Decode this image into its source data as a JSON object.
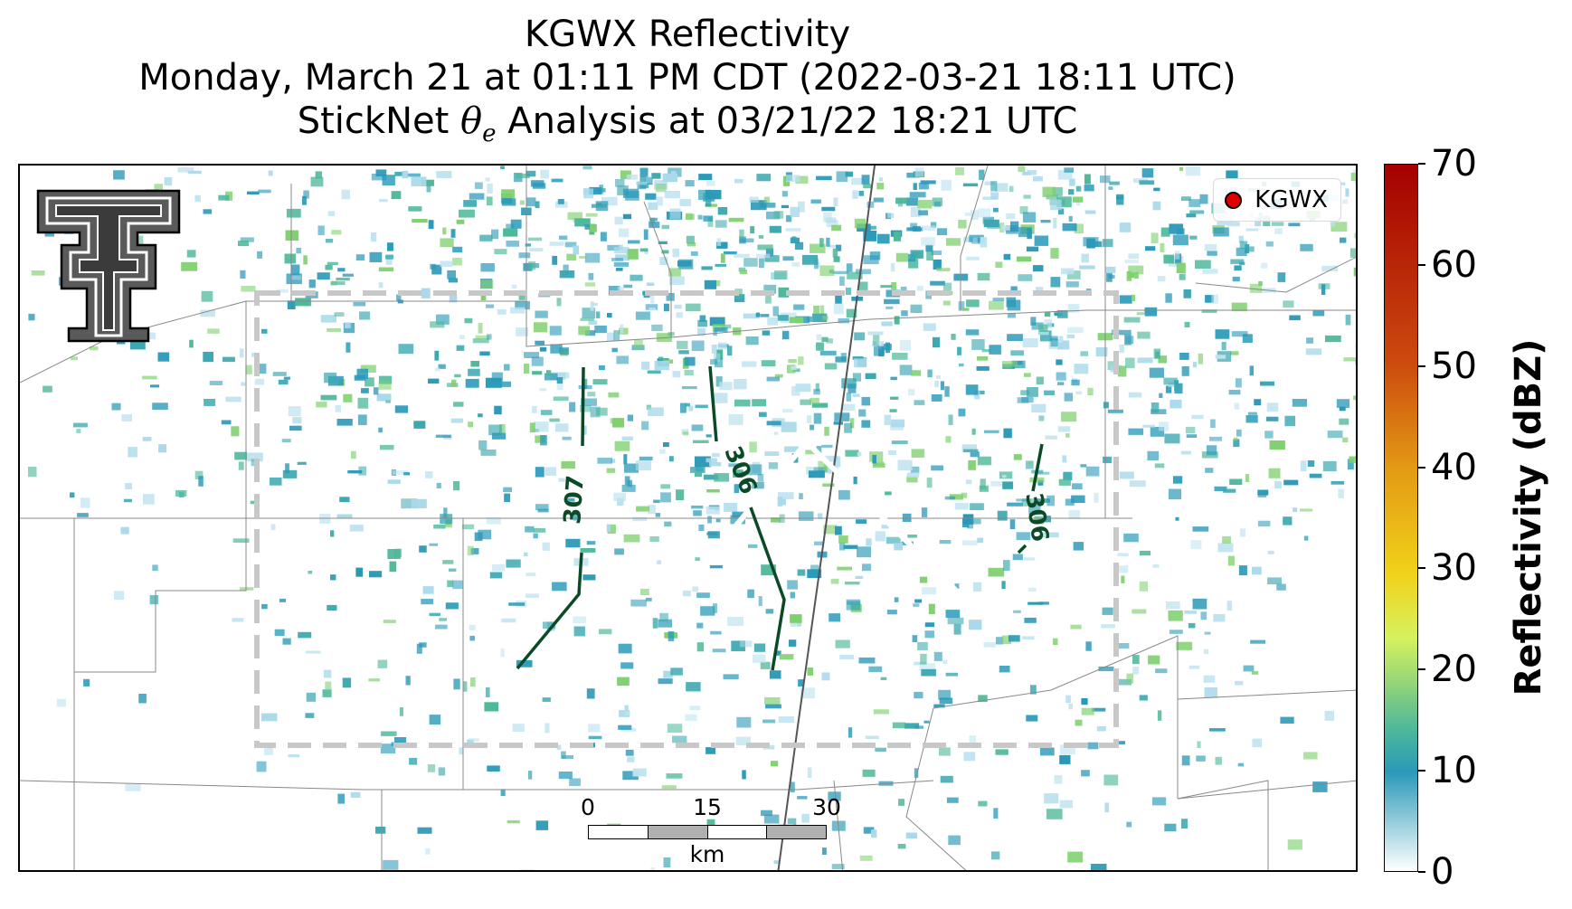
{
  "title": {
    "line1": "KGWX Reflectivity",
    "line2": "Monday, March 21 at 01:11 PM CDT (2022-03-21 18:11 UTC)",
    "line3_prefix": "StickNet ",
    "line3_symbol": "θ",
    "line3_subscript": "e",
    "line3_suffix": " Analysis at 03/21/22 18:21 UTC"
  },
  "legend": {
    "label": "KGWX",
    "marker_color": "#e00000"
  },
  "contours": [
    {
      "label": "307",
      "color": "#0a4a26"
    },
    {
      "label": "306",
      "color": "#0a4a26"
    },
    {
      "label": "306",
      "color": "#0a4a26"
    }
  ],
  "scalebar": {
    "labels": [
      "0",
      "15",
      "30"
    ],
    "unit": "km"
  },
  "colorbar": {
    "title": "Reflectivity (dBZ)",
    "ticks": [
      "0",
      "10",
      "20",
      "30",
      "40",
      "50",
      "60",
      "70"
    ],
    "range": [
      0,
      70
    ]
  },
  "colors": {
    "echo_primary": "#2a99b8",
    "echo_secondary": "#4db89a",
    "analysis_box": "#c8c8c8",
    "contour": "#0a4a26"
  }
}
